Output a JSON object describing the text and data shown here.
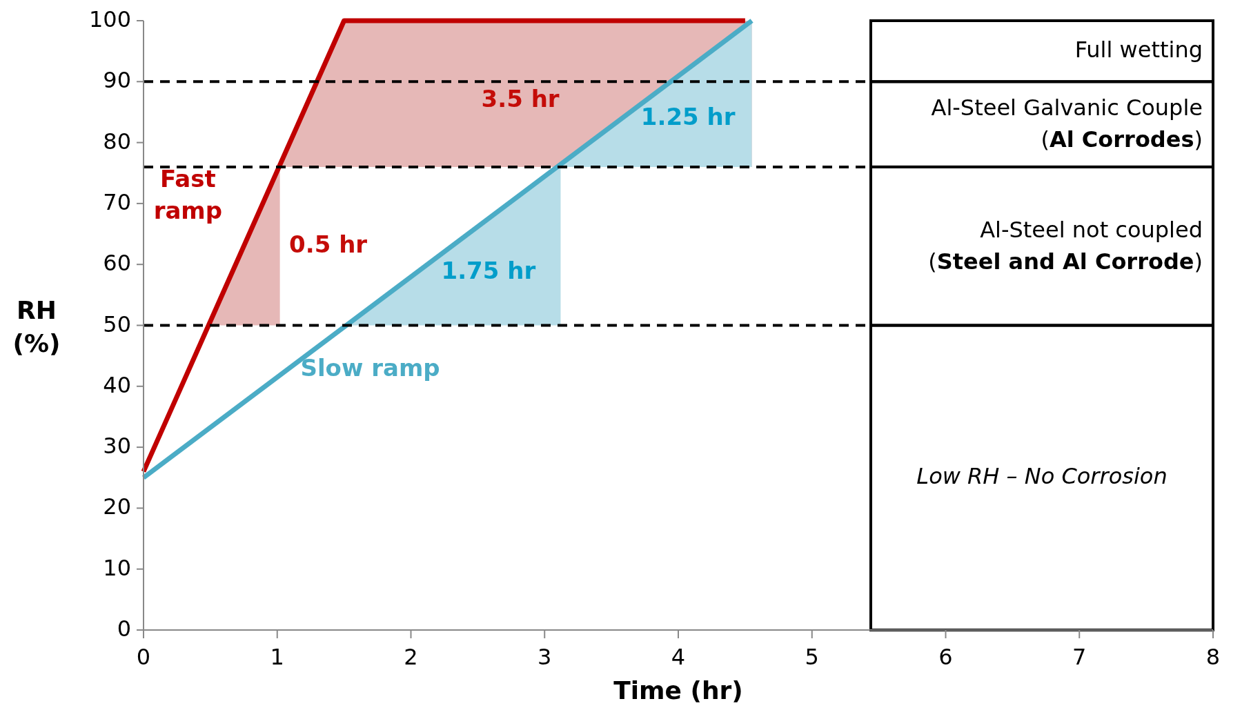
{
  "chart_data": {
    "type": "line",
    "xlabel": "Time (hr)",
    "ylabel": "RH (%)",
    "xlim": [
      0,
      8
    ],
    "xticks": [
      0,
      1,
      2,
      3,
      4,
      5,
      6,
      7,
      8
    ],
    "ylim": [
      0,
      100
    ],
    "yticks": [
      0,
      10,
      20,
      30,
      40,
      50,
      60,
      70,
      80,
      90,
      100
    ],
    "grid": false,
    "series": [
      {
        "type": "area",
        "color": "#e6b8b7",
        "x": [
          0.5,
          1.5,
          4.55,
          4.55,
          1.02,
          1.02
        ],
        "values": [
          50,
          100,
          100,
          76,
          76,
          50
        ]
      },
      {
        "type": "area",
        "name": "1.75 hr",
        "color": "#b7dde8",
        "x": [
          1.5,
          3.12,
          3.12
        ],
        "values": [
          50,
          76,
          50
        ]
      },
      {
        "type": "area",
        "name": "1.25 hr",
        "color": "#b7dde8",
        "x": [
          3.12,
          4.55,
          4.55
        ],
        "values": [
          76,
          100,
          76
        ]
      },
      {
        "name": "Fast ramp",
        "color": "#c00000",
        "x": [
          0,
          1.5,
          4.5
        ],
        "values": [
          26,
          100,
          100
        ]
      },
      {
        "name": "Slow ramp",
        "color": "#4bacc6",
        "x": [
          0,
          4.55
        ],
        "values": [
          25,
          100
        ]
      }
    ],
    "ref_lines": [
      {
        "axis": "y",
        "value": 90,
        "line_style": "dashed",
        "color": "#000000"
      },
      {
        "axis": "y",
        "value": 76,
        "line_style": "dashed",
        "color": "#000000"
      },
      {
        "axis": "y",
        "value": 50,
        "line_style": "dashed",
        "color": "#000000"
      }
    ],
    "annotations": [
      "3.5 hr",
      "0.5 hr",
      "Full wetting",
      "Al-Steel Galvanic Couple (Al Corrodes)",
      "Al-Steel not coupled (Steel and Al Corrode)",
      "Low RH – No Corrosion"
    ]
  }
}
